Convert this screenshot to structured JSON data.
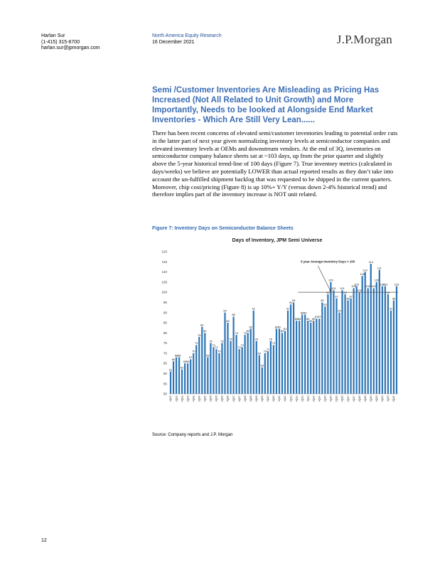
{
  "header": {
    "analyst_name": "Harlan Sur",
    "analyst_phone": "(1-415) 315-6700",
    "analyst_email": "harlan.sur@jpmorgan.com",
    "research_title": "North America Equity Research",
    "date": "16 December 2021",
    "logo": "J.P.Morgan"
  },
  "headline": "Semi /Customer Inventories Are Misleading as Pricing Has Increased (Not All Related to Unit Growth) and More Importantly, Needs to be looked at Alongside End Market Inventories - Which Are Still Very Lean......",
  "body": "There has been recent concerns of elevated semi/customer inventories leading to potential order cuts in the latter part of next year given normalizing inventory levels at semiconductor companies and elevated inventory levels at OEMs and downstream vendors. At the end of 3Q, inventories on semiconductor company balance sheets sat at ~103 days, up from the prior quarter and slightly above the 5-year historical trend-line of 100 days (Figure 7). True inventory metrics (calculated in days/weeks) we believe are potentially LOWER than actual reported results as they don’t take into account the un-fulfilled shipment backlog that was requested to be shipped in the current quarters. Moreover, chip cost/pricing (Figure 8) is up 10%+ Y/Y (versus down 2-4% historical trend) and therefore implies part of the inventory increase is NOT unit related.",
  "figure_caption": "Figure 7: Inventory Days on Semiconductor Balance Sheets",
  "source": "Source: Company reports and J.P. Morgan",
  "page_number": "12",
  "chart_data": {
    "type": "bar",
    "title": "Days of Inventory, JPM Semi Universe",
    "xlabel": "",
    "ylabel": "",
    "ylim": [
      50,
      120
    ],
    "yticks": [
      50,
      55,
      60,
      65,
      70,
      75,
      80,
      85,
      90,
      95,
      100,
      105,
      110,
      115,
      120
    ],
    "grid": false,
    "bar_color": "#2e75b6",
    "reference_line": {
      "value": 100,
      "label": "5 year Average Inventory Days = 100"
    },
    "categories": [
      "4Q01",
      "1Q02",
      "2Q02",
      "3Q02",
      "4Q02",
      "1Q03",
      "2Q03",
      "3Q03",
      "4Q03",
      "1Q04",
      "2Q04",
      "3Q04",
      "4Q04",
      "1Q05",
      "2Q05",
      "3Q05",
      "4Q05",
      "1Q06",
      "2Q06",
      "3Q06",
      "4Q06",
      "1Q07",
      "2Q07",
      "3Q07",
      "4Q07",
      "1Q08",
      "2Q08",
      "3Q08",
      "4Q08",
      "1Q09",
      "2Q09",
      "3Q09",
      "4Q09",
      "1Q10",
      "2Q10",
      "3Q10",
      "4Q10",
      "1Q11",
      "2Q11",
      "3Q11",
      "4Q11",
      "1Q12",
      "2Q12",
      "3Q12",
      "4Q12",
      "1Q13",
      "2Q13",
      "3Q13",
      "4Q13",
      "1Q14",
      "2Q14",
      "3Q14",
      "4Q14",
      "1Q15",
      "2Q15",
      "3Q15",
      "4Q15",
      "1Q16",
      "2Q16",
      "3Q16",
      "4Q16",
      "1Q17",
      "2Q17",
      "3Q17",
      "4Q17",
      "1Q18",
      "2Q18",
      "3Q18",
      "4Q18",
      "1Q19",
      "2Q19",
      "3Q19",
      "4Q19",
      "1Q20",
      "2Q20",
      "3Q20",
      "4Q20",
      "1Q21",
      "2Q21",
      "3Q21"
    ],
    "tick_labels": [
      "4Q01",
      "2Q02",
      "4Q02",
      "2Q03",
      "4Q03",
      "2Q04",
      "4Q04",
      "2Q05",
      "4Q05",
      "2Q06",
      "4Q06",
      "2Q07",
      "4Q07",
      "2Q08",
      "4Q08",
      "2Q09",
      "4Q09",
      "2Q10",
      "4Q10",
      "2Q11",
      "4Q11",
      "2Q12",
      "4Q12",
      "2Q13",
      "4Q13",
      "2Q14",
      "4Q14",
      "2Q15",
      "4Q15",
      "2Q16",
      "4Q16",
      "2Q17",
      "4Q17",
      "2Q18",
      "4Q18",
      "2Q19",
      "4Q19",
      "2Q20",
      "4Q20",
      "2Q21"
    ],
    "values": [
      61,
      66,
      68,
      68,
      62,
      65,
      65,
      67,
      70,
      74,
      78,
      83,
      80,
      68,
      75,
      73,
      72,
      70,
      75,
      90,
      85,
      76,
      88,
      79,
      72,
      73,
      79,
      80,
      82,
      91,
      76,
      69,
      63,
      70,
      71,
      76,
      74,
      82,
      82,
      80,
      81,
      91,
      94,
      95,
      86,
      86,
      89,
      89,
      86,
      85,
      86,
      87,
      87,
      95,
      93,
      99,
      105,
      101,
      97,
      90,
      101,
      99,
      96,
      97,
      102,
      103,
      100,
      108,
      110,
      102,
      114,
      102,
      105,
      111,
      103,
      103,
      99,
      91,
      96,
      103
    ]
  }
}
